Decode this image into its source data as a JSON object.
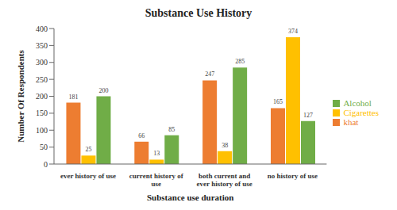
{
  "chart_data": {
    "type": "bar",
    "title": "Substance Use History",
    "x_label": "Substance use duration",
    "y_label": "Number Of Respondents",
    "categories": [
      "ever history of use",
      "current history of use",
      "both current and ever history of use",
      "no history of use"
    ],
    "series": [
      {
        "name": "khat",
        "color": "#ED7D31",
        "values": [
          181,
          66,
          247,
          165
        ]
      },
      {
        "name": "Cigarettes",
        "color": "#FFC000",
        "values": [
          25,
          13,
          38,
          374
        ]
      },
      {
        "name": "Alcohol",
        "color": "#70AD47",
        "values": [
          200,
          85,
          285,
          127
        ]
      }
    ],
    "ylim": [
      0,
      400
    ],
    "yticks": [
      0,
      50,
      100,
      150,
      200,
      250,
      300,
      350,
      400
    ],
    "grid": false,
    "legend": "right",
    "data_labels": true
  }
}
